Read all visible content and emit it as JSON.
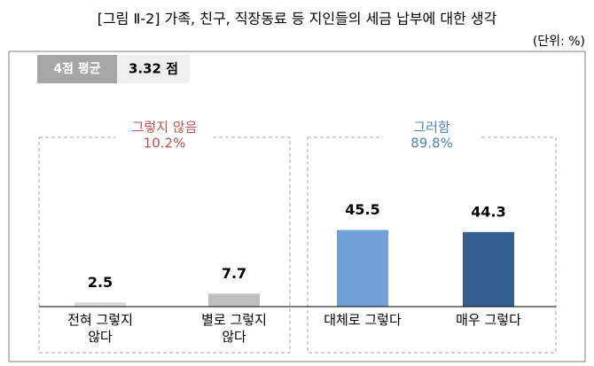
{
  "chart_data": {
    "type": "bar",
    "title": "[그림 Ⅱ-2] 가족, 친구, 직장동료 등 지인들의 세금 납부에 대한 생각",
    "unit": "(단위: %)",
    "badge": {
      "label": "4점 평균",
      "value": "3.32 점"
    },
    "groups": [
      {
        "name": "그렇지 않음",
        "share": "10.2%",
        "color": "#c0504d"
      },
      {
        "name": "그러함",
        "share": "89.8%",
        "color": "#4f81bd"
      }
    ],
    "categories": [
      "전혀 그렇지\n않다",
      "별로 그렇지\n않다",
      "대체로 그렇다",
      "매우 그렇다"
    ],
    "values": [
      2.5,
      7.7,
      45.5,
      44.3
    ],
    "colors": [
      "#d9d9d9",
      "#bfbfbf",
      "#6fa0d8",
      "#365f91"
    ]
  }
}
